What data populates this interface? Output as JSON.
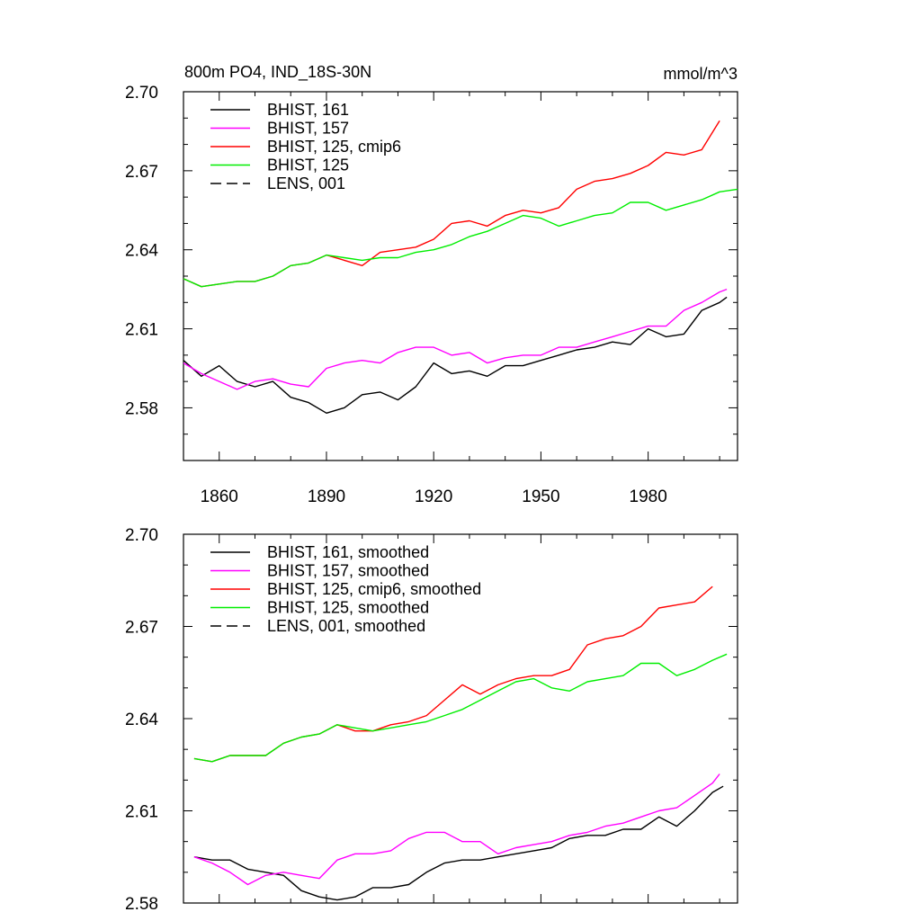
{
  "chart_data": [
    {
      "type": "line",
      "title": "800m PO4, IND_18S-30N",
      "units": "mmol/m^3",
      "xlabel": "",
      "ylabel": "",
      "xlim": [
        1850,
        2005
      ],
      "ylim": [
        2.56,
        2.7
      ],
      "xticks": [
        1860,
        1890,
        1920,
        1950,
        1980
      ],
      "xtick_labels": [
        "1860",
        "1890",
        "1920",
        "1950",
        "1980"
      ],
      "yticks": [
        2.58,
        2.61,
        2.64,
        2.67,
        2.7
      ],
      "ytick_labels": [
        "2.58",
        "2.61",
        "2.64",
        "2.67",
        "2.70"
      ],
      "legend_position": "top-left",
      "series": [
        {
          "name": "BHIST, 161",
          "color": "#000000",
          "dash": "solid",
          "x": [
            1850,
            1855,
            1860,
            1865,
            1870,
            1875,
            1880,
            1885,
            1890,
            1895,
            1900,
            1905,
            1910,
            1915,
            1920,
            1925,
            1930,
            1935,
            1940,
            1945,
            1950,
            1955,
            1960,
            1965,
            1970,
            1975,
            1980,
            1985,
            1990,
            1995,
            2000,
            2002
          ],
          "y": [
            2.598,
            2.592,
            2.596,
            2.59,
            2.588,
            2.59,
            2.584,
            2.582,
            2.578,
            2.58,
            2.585,
            2.586,
            2.583,
            2.588,
            2.597,
            2.593,
            2.594,
            2.592,
            2.596,
            2.596,
            2.598,
            2.6,
            2.602,
            2.603,
            2.605,
            2.604,
            2.61,
            2.607,
            2.608,
            2.617,
            2.62,
            2.622
          ]
        },
        {
          "name": "BHIST, 157",
          "color": "#ff00ff",
          "dash": "solid",
          "x": [
            1850,
            1855,
            1860,
            1865,
            1870,
            1875,
            1880,
            1885,
            1890,
            1895,
            1900,
            1905,
            1910,
            1915,
            1920,
            1925,
            1930,
            1935,
            1940,
            1945,
            1950,
            1955,
            1960,
            1965,
            1970,
            1975,
            1980,
            1985,
            1990,
            1995,
            2000,
            2002
          ],
          "y": [
            2.597,
            2.593,
            2.59,
            2.587,
            2.59,
            2.591,
            2.589,
            2.588,
            2.595,
            2.597,
            2.598,
            2.597,
            2.601,
            2.603,
            2.603,
            2.6,
            2.601,
            2.597,
            2.599,
            2.6,
            2.6,
            2.603,
            2.603,
            2.605,
            2.607,
            2.609,
            2.611,
            2.611,
            2.617,
            2.62,
            2.624,
            2.625
          ]
        },
        {
          "name": "BHIST, 125, cmip6",
          "color": "#ff0000",
          "dash": "solid",
          "x": [
            1850,
            1855,
            1860,
            1865,
            1870,
            1875,
            1880,
            1885,
            1890,
            1895,
            1900,
            1905,
            1910,
            1915,
            1920,
            1925,
            1930,
            1935,
            1940,
            1945,
            1950,
            1955,
            1960,
            1965,
            1970,
            1975,
            1980,
            1985,
            1990,
            1995,
            2000
          ],
          "y": [
            2.629,
            2.626,
            2.627,
            2.628,
            2.628,
            2.63,
            2.634,
            2.635,
            2.638,
            2.636,
            2.634,
            2.639,
            2.64,
            2.641,
            2.644,
            2.65,
            2.651,
            2.649,
            2.653,
            2.655,
            2.654,
            2.656,
            2.663,
            2.666,
            2.667,
            2.669,
            2.672,
            2.677,
            2.676,
            2.678,
            2.689
          ]
        },
        {
          "name": "BHIST, 125",
          "color": "#00ee00",
          "dash": "solid",
          "x": [
            1850,
            1855,
            1860,
            1865,
            1870,
            1875,
            1880,
            1885,
            1890,
            1895,
            1900,
            1905,
            1910,
            1915,
            1920,
            1925,
            1930,
            1935,
            1940,
            1945,
            1950,
            1955,
            1960,
            1965,
            1970,
            1975,
            1980,
            1985,
            1990,
            1995,
            2000,
            2005
          ],
          "y": [
            2.629,
            2.626,
            2.627,
            2.628,
            2.628,
            2.63,
            2.634,
            2.635,
            2.638,
            2.637,
            2.636,
            2.637,
            2.637,
            2.639,
            2.64,
            2.642,
            2.645,
            2.647,
            2.65,
            2.653,
            2.652,
            2.649,
            2.651,
            2.653,
            2.654,
            2.658,
            2.658,
            2.655,
            2.657,
            2.659,
            2.662,
            2.663
          ]
        },
        {
          "name": "LENS, 001",
          "color": "#000000",
          "dash": "dashed",
          "x": [],
          "y": []
        }
      ]
    },
    {
      "type": "line",
      "title": "",
      "xlabel": "",
      "ylabel": "",
      "xlim": [
        1850,
        2005
      ],
      "ylim": [
        2.58,
        2.7
      ],
      "xticks": [
        1860,
        1890,
        1920,
        1950,
        1980
      ],
      "yticks": [
        2.58,
        2.61,
        2.64,
        2.67,
        2.7
      ],
      "ytick_labels": [
        "2.58",
        "2.61",
        "2.64",
        "2.67",
        "2.70"
      ],
      "legend_position": "top-left",
      "series": [
        {
          "name": "BHIST, 161, smoothed",
          "color": "#000000",
          "dash": "solid",
          "x": [
            1853,
            1858,
            1863,
            1868,
            1873,
            1878,
            1883,
            1888,
            1893,
            1898,
            1903,
            1908,
            1913,
            1918,
            1923,
            1928,
            1933,
            1938,
            1943,
            1948,
            1953,
            1958,
            1963,
            1968,
            1973,
            1978,
            1983,
            1988,
            1993,
            1998,
            2001
          ],
          "y": [
            2.595,
            2.594,
            2.594,
            2.591,
            2.59,
            2.589,
            2.584,
            2.582,
            2.581,
            2.582,
            2.585,
            2.585,
            2.586,
            2.59,
            2.593,
            2.594,
            2.594,
            2.595,
            2.596,
            2.597,
            2.598,
            2.601,
            2.602,
            2.602,
            2.604,
            2.604,
            2.608,
            2.605,
            2.61,
            2.616,
            2.618
          ]
        },
        {
          "name": "BHIST, 157, smoothed",
          "color": "#ff00ff",
          "dash": "solid",
          "x": [
            1853,
            1858,
            1863,
            1868,
            1873,
            1878,
            1883,
            1888,
            1893,
            1898,
            1903,
            1908,
            1913,
            1918,
            1923,
            1928,
            1933,
            1938,
            1943,
            1948,
            1953,
            1958,
            1963,
            1968,
            1973,
            1978,
            1983,
            1988,
            1993,
            1998,
            2000
          ],
          "y": [
            2.595,
            2.593,
            2.59,
            2.586,
            2.589,
            2.59,
            2.589,
            2.588,
            2.594,
            2.596,
            2.596,
            2.597,
            2.601,
            2.603,
            2.603,
            2.6,
            2.6,
            2.596,
            2.598,
            2.599,
            2.6,
            2.602,
            2.603,
            2.605,
            2.606,
            2.608,
            2.61,
            2.611,
            2.615,
            2.619,
            2.622
          ]
        },
        {
          "name": "BHIST, 125, cmip6, smoothed",
          "color": "#ff0000",
          "dash": "solid",
          "x": [
            1853,
            1858,
            1863,
            1868,
            1873,
            1878,
            1883,
            1888,
            1893,
            1898,
            1903,
            1908,
            1913,
            1918,
            1923,
            1928,
            1933,
            1938,
            1943,
            1948,
            1953,
            1958,
            1963,
            1968,
            1973,
            1978,
            1983,
            1988,
            1993,
            1998
          ],
          "y": [
            2.627,
            2.626,
            2.628,
            2.628,
            2.628,
            2.632,
            2.634,
            2.635,
            2.638,
            2.636,
            2.636,
            2.638,
            2.639,
            2.641,
            2.646,
            2.651,
            2.648,
            2.651,
            2.653,
            2.654,
            2.654,
            2.656,
            2.664,
            2.666,
            2.667,
            2.67,
            2.676,
            2.677,
            2.678,
            2.683
          ]
        },
        {
          "name": "BHIST, 125, smoothed",
          "color": "#00ee00",
          "dash": "solid",
          "x": [
            1853,
            1858,
            1863,
            1868,
            1873,
            1878,
            1883,
            1888,
            1893,
            1898,
            1903,
            1908,
            1913,
            1918,
            1923,
            1928,
            1933,
            1938,
            1943,
            1948,
            1953,
            1958,
            1963,
            1968,
            1973,
            1978,
            1983,
            1988,
            1993,
            1998,
            2002
          ],
          "y": [
            2.627,
            2.626,
            2.628,
            2.628,
            2.628,
            2.632,
            2.634,
            2.635,
            2.638,
            2.637,
            2.636,
            2.637,
            2.638,
            2.639,
            2.641,
            2.643,
            2.646,
            2.649,
            2.652,
            2.653,
            2.65,
            2.649,
            2.652,
            2.653,
            2.654,
            2.658,
            2.658,
            2.654,
            2.656,
            2.659,
            2.661
          ]
        },
        {
          "name": "LENS, 001, smoothed",
          "color": "#000000",
          "dash": "dashed",
          "x": [],
          "y": []
        }
      ]
    }
  ]
}
